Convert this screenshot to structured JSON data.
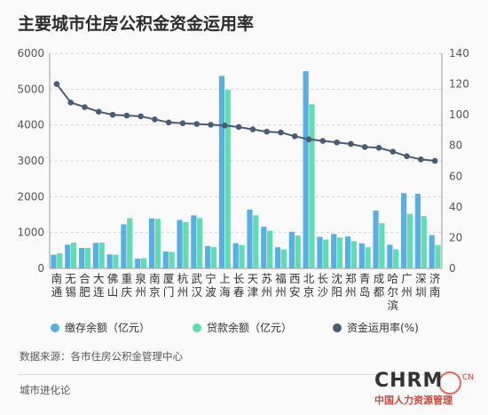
{
  "page": {
    "title": "主要城市住房公积金资金运用率",
    "source": "数据来源：各市住房公积金管理中心",
    "footer": "城市进化论"
  },
  "watermark": {
    "text": "CHRM",
    "suffix": "CN",
    "subtitle": "中国人力资源管理"
  },
  "colors": {
    "deposit": "#5aaee6",
    "loan": "#5fdcb0",
    "rate": "#4a5b78",
    "grid": "#d6d6d6",
    "axis_text": "#555555"
  },
  "chart_data": {
    "type": "bar+line",
    "categories": [
      [
        "南",
        "通"
      ],
      [
        "无",
        "锡"
      ],
      [
        "合",
        "肥"
      ],
      [
        "大",
        "连"
      ],
      [
        "佛",
        "山"
      ],
      [
        "重",
        "庆"
      ],
      [
        "泉",
        "州"
      ],
      [
        "南",
        "京"
      ],
      [
        "厦",
        "门"
      ],
      [
        "杭",
        "州"
      ],
      [
        "武",
        "汉"
      ],
      [
        "宁",
        "波"
      ],
      [
        "上",
        "海"
      ],
      [
        "长",
        "春"
      ],
      [
        "天",
        "津"
      ],
      [
        "苏",
        "州"
      ],
      [
        "福",
        "州"
      ],
      [
        "西",
        "安"
      ],
      [
        "北",
        "京"
      ],
      [
        "长",
        "沙"
      ],
      [
        "沈",
        "阳"
      ],
      [
        "郑",
        "州"
      ],
      [
        "青",
        "岛"
      ],
      [
        "成",
        "都"
      ],
      [
        "哈",
        "尔",
        "滨"
      ],
      [
        "广",
        "州"
      ],
      [
        "深",
        "圳"
      ],
      [
        "济",
        "南"
      ]
    ],
    "series": [
      {
        "name": "缴存余额（亿元）",
        "axis": "left",
        "values": [
          380,
          660,
          570,
          710,
          390,
          1230,
          270,
          1390,
          470,
          1350,
          1480,
          620,
          5370,
          700,
          1640,
          1160,
          590,
          1020,
          5500,
          880,
          960,
          890,
          700,
          1610,
          660,
          2100,
          2080,
          930
        ]
      },
      {
        "name": "贷款余额（亿元）",
        "axis": "left",
        "values": [
          420,
          720,
          570,
          720,
          380,
          1400,
          280,
          1380,
          460,
          1290,
          1400,
          590,
          4980,
          650,
          1480,
          1050,
          530,
          920,
          4580,
          800,
          860,
          760,
          590,
          1260,
          530,
          1520,
          1460,
          650
        ]
      },
      {
        "name": "资金运用率(%)",
        "axis": "right",
        "type": "line",
        "values": [
          120,
          108,
          105,
          102,
          100,
          99.5,
          99,
          97,
          95,
          94.5,
          94,
          93.5,
          93,
          92,
          90.5,
          89,
          88.5,
          86,
          84,
          83,
          82,
          81,
          79,
          78.5,
          76,
          73,
          71,
          70
        ]
      }
    ],
    "y_left": {
      "min": 0,
      "max": 6000,
      "ticks": [
        "0",
        "1000",
        "2000",
        "3000",
        "4000",
        "5000",
        "6000"
      ]
    },
    "y_right": {
      "min": 0,
      "max": 140,
      "ticks": [
        "0",
        "20",
        "40",
        "60",
        "80",
        "100",
        "120",
        "140"
      ]
    },
    "grid": true,
    "legend_position": "bottom"
  }
}
